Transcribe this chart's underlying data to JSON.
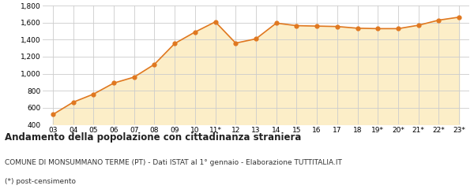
{
  "x_labels": [
    "03",
    "04",
    "05",
    "06",
    "07",
    "08",
    "09",
    "10",
    "11*",
    "12",
    "13",
    "14",
    "15",
    "16",
    "17",
    "18",
    "19*",
    "20*",
    "21*",
    "22*",
    "23*"
  ],
  "y_values": [
    520,
    665,
    760,
    890,
    960,
    1110,
    1355,
    1490,
    1610,
    1360,
    1410,
    1595,
    1565,
    1560,
    1555,
    1535,
    1530,
    1530,
    1570,
    1630,
    1665
  ],
  "line_color": "#e07820",
  "fill_color": "#fceec8",
  "marker_color": "#e07820",
  "bg_color": "#ffffff",
  "grid_color": "#cccccc",
  "ylim": [
    400,
    1800
  ],
  "yticks": [
    400,
    600,
    800,
    1000,
    1200,
    1400,
    1600,
    1800
  ],
  "title": "Andamento della popolazione con cittadinanza straniera",
  "subtitle": "COMUNE DI MONSUMMANO TERME (PT) - Dati ISTAT al 1° gennaio - Elaborazione TUTTITALIA.IT",
  "footnote": "(*) post-censimento",
  "title_fontsize": 8.5,
  "subtitle_fontsize": 6.5,
  "footnote_fontsize": 6.5
}
